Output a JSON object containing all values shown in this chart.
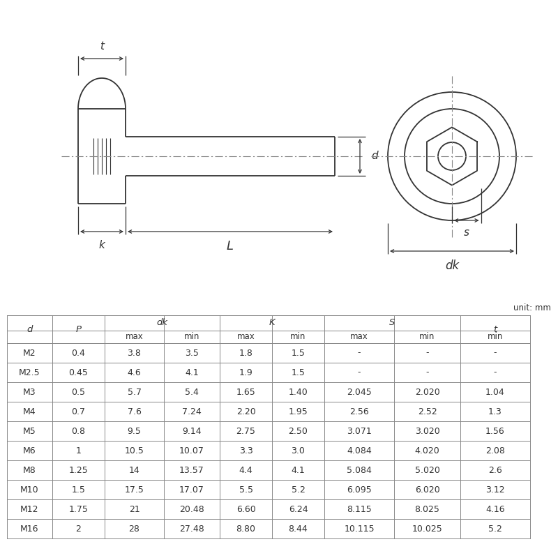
{
  "bg_color": "#ffffff",
  "line_color": "#333333",
  "dim_color": "#333333",
  "unit_text": "unit: mm",
  "table_data": [
    [
      "M2",
      "0.4",
      "3.8",
      "3.5",
      "1.8",
      "1.5",
      "-",
      "-",
      "-"
    ],
    [
      "M2.5",
      "0.45",
      "4.6",
      "4.1",
      "1.9",
      "1.5",
      "-",
      "-",
      "-"
    ],
    [
      "M3",
      "0.5",
      "5.7",
      "5.4",
      "1.65",
      "1.40",
      "2.045",
      "2.020",
      "1.04"
    ],
    [
      "M4",
      "0.7",
      "7.6",
      "7.24",
      "2.20",
      "1.95",
      "2.56",
      "2.52",
      "1.3"
    ],
    [
      "M5",
      "0.8",
      "9.5",
      "9.14",
      "2.75",
      "2.50",
      "3.071",
      "3.020",
      "1.56"
    ],
    [
      "M6",
      "1",
      "10.5",
      "10.07",
      "3.3",
      "3.0",
      "4.084",
      "4.020",
      "2.08"
    ],
    [
      "M8",
      "1.25",
      "14",
      "13.57",
      "4.4",
      "4.1",
      "5.084",
      "5.020",
      "2.6"
    ],
    [
      "M10",
      "1.5",
      "17.5",
      "17.07",
      "5.5",
      "5.2",
      "6.095",
      "6.020",
      "3.12"
    ],
    [
      "M12",
      "1.75",
      "21",
      "20.48",
      "6.60",
      "6.24",
      "8.115",
      "8.025",
      "4.16"
    ],
    [
      "M16",
      "2",
      "28",
      "27.48",
      "8.80",
      "8.44",
      "10.115",
      "10.025",
      "5.2"
    ]
  ],
  "labels": {
    "t": "t",
    "k": "k",
    "L": "L",
    "d": "d",
    "s": "s",
    "dk": "dk"
  }
}
